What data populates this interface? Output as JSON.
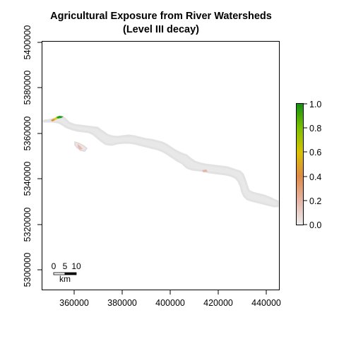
{
  "title_line1": "Agricultural Exposure from River Watersheds",
  "title_line2": "(Level III decay)",
  "x_ticks": [
    "360000",
    "380000",
    "400000",
    "420000",
    "440000"
  ],
  "y_ticks": [
    "5300000",
    "5320000",
    "5340000",
    "5360000",
    "5380000",
    "5400000"
  ],
  "legend": {
    "ticks": [
      "0.0",
      "0.2",
      "0.4",
      "0.6",
      "0.8",
      "1.0"
    ],
    "colors": [
      "#ececec",
      "#e6b4a6",
      "#e08a45",
      "#d8c200",
      "#7cc000",
      "#109010"
    ]
  },
  "scalebar": {
    "labels": [
      "0",
      "5",
      "10"
    ],
    "unit": "km"
  },
  "map": {
    "watershed_color": "#e8e8e8",
    "highlight_colors": {
      "green": "#1ea01e",
      "yellow": "#e0d000",
      "orange": "#e08a45",
      "pink": "#e6b4a6"
    }
  }
}
